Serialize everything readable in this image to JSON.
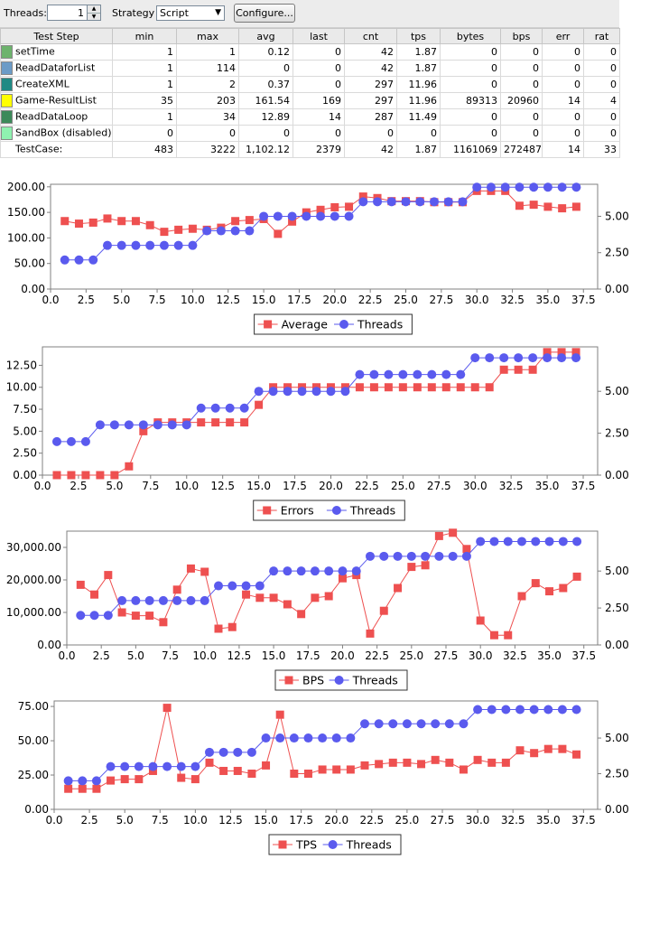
{
  "toolbar": {
    "threads_label": "Threads:",
    "threads_value": "1",
    "strategy_label": "Strategy",
    "strategy_value": "Script",
    "configure_label": "Configure..."
  },
  "stats_table": {
    "columns": [
      "Test Step",
      "min",
      "max",
      "avg",
      "last",
      "cnt",
      "tps",
      "bytes",
      "bps",
      "err",
      "rat"
    ],
    "rows": [
      {
        "color": "#6db36d",
        "cells": [
          "setTime",
          "1",
          "1",
          "0.12",
          "0",
          "42",
          "1.87",
          "0",
          "0",
          "0",
          "0"
        ]
      },
      {
        "color": "#6b9bc7",
        "cells": [
          "ReadDataforList",
          "1",
          "114",
          "0",
          "0",
          "42",
          "1.87",
          "0",
          "0",
          "0",
          "0"
        ]
      },
      {
        "color": "#1f8a84",
        "cells": [
          "CreateXML",
          "1",
          "2",
          "0.37",
          "0",
          "297",
          "11.96",
          "0",
          "0",
          "0",
          "0"
        ]
      },
      {
        "color": "#ffff00",
        "cells": [
          "Game-ResultList",
          "35",
          "203",
          "161.54",
          "169",
          "297",
          "11.96",
          "89313",
          "20960",
          "14",
          "4"
        ]
      },
      {
        "color": "#3c8a5a",
        "cells": [
          "ReadDataLoop",
          "1",
          "34",
          "12.89",
          "14",
          "287",
          "11.49",
          "0",
          "0",
          "0",
          "0"
        ]
      },
      {
        "color": "#8ff2b0",
        "cells": [
          "SandBox (disabled)",
          "0",
          "0",
          "0",
          "0",
          "0",
          "0",
          "0",
          "0",
          "0",
          "0"
        ]
      },
      {
        "color": "",
        "cells": [
          "TestCase:",
          "483",
          "3222",
          "1,102.12",
          "2379",
          "42",
          "1.87",
          "1161069",
          "272487",
          "14",
          "33"
        ]
      }
    ]
  },
  "colors": {
    "primary_series": "#ee5050",
    "threads_series": "#5a5aee",
    "axis": "#808080"
  },
  "chart_data": [
    {
      "type": "line",
      "x": [
        1,
        2,
        3,
        4,
        5,
        6,
        7,
        8,
        9,
        10,
        11,
        12,
        13,
        14,
        15,
        16,
        17,
        18,
        19,
        20,
        21,
        22,
        23,
        24,
        25,
        26,
        27,
        28,
        29,
        30,
        31,
        32,
        33,
        34,
        35,
        36,
        37
      ],
      "xlim": [
        0,
        38.5
      ],
      "xticks": [
        "0.0",
        "2.5",
        "5.0",
        "7.5",
        "10.0",
        "12.5",
        "15.0",
        "17.5",
        "20.0",
        "22.5",
        "25.0",
        "27.5",
        "30.0",
        "32.5",
        "35.0",
        "37.5"
      ],
      "ylim": [
        0,
        205
      ],
      "yticks": [
        "0.00",
        "50.00",
        "100.00",
        "150.00",
        "200.00"
      ],
      "y2lim": [
        0,
        7.2
      ],
      "y2ticks": [
        "0.00",
        "2.50",
        "5.00"
      ],
      "series": [
        {
          "name": "Average",
          "marker": "square",
          "axis": "left",
          "values": [
            133,
            128,
            130,
            138,
            133,
            133,
            125,
            112,
            116,
            118,
            116,
            120,
            133,
            135,
            137,
            108,
            132,
            150,
            155,
            160,
            161,
            181,
            178,
            172,
            172,
            172,
            170,
            170,
            170,
            192,
            192,
            192,
            163,
            165,
            161,
            158,
            161
          ]
        },
        {
          "name": "Threads",
          "marker": "circle",
          "axis": "right",
          "values": [
            2,
            2,
            2,
            3,
            3,
            3,
            3,
            3,
            3,
            3,
            4,
            4,
            4,
            4,
            5,
            5,
            5,
            5,
            5,
            5,
            5,
            6,
            6,
            6,
            6,
            6,
            6,
            6,
            6,
            7,
            7,
            7,
            7,
            7,
            7,
            7,
            7
          ]
        }
      ]
    },
    {
      "type": "line",
      "x": [
        1,
        2,
        3,
        4,
        5,
        6,
        7,
        8,
        9,
        10,
        11,
        12,
        13,
        14,
        15,
        16,
        17,
        18,
        19,
        20,
        21,
        22,
        23,
        24,
        25,
        26,
        27,
        28,
        29,
        30,
        31,
        32,
        33,
        34,
        35,
        36,
        37
      ],
      "xlim": [
        0,
        38.5
      ],
      "xticks": [
        "0.0",
        "2.5",
        "5.0",
        "7.5",
        "10.0",
        "12.5",
        "15.0",
        "17.5",
        "20.0",
        "22.5",
        "25.0",
        "27.5",
        "30.0",
        "32.5",
        "35.0",
        "37.5"
      ],
      "ylim": [
        0,
        14.6
      ],
      "yticks": [
        "0.00",
        "2.50",
        "5.00",
        "7.50",
        "10.00",
        "12.50"
      ],
      "y2lim": [
        0,
        7.65
      ],
      "y2ticks": [
        "0.00",
        "2.50",
        "5.00"
      ],
      "series": [
        {
          "name": "Errors",
          "marker": "square",
          "axis": "left",
          "values": [
            0,
            0,
            0,
            0,
            0,
            1,
            5,
            6,
            6,
            6,
            6,
            6,
            6,
            6,
            8,
            10,
            10,
            10,
            10,
            10,
            10,
            10,
            10,
            10,
            10,
            10,
            10,
            10,
            10,
            10,
            10,
            12,
            12,
            12,
            14,
            14,
            14
          ]
        },
        {
          "name": "Threads",
          "marker": "circle",
          "axis": "right",
          "values": [
            2,
            2,
            2,
            3,
            3,
            3,
            3,
            3,
            3,
            3,
            4,
            4,
            4,
            4,
            5,
            5,
            5,
            5,
            5,
            5,
            5,
            6,
            6,
            6,
            6,
            6,
            6,
            6,
            6,
            7,
            7,
            7,
            7,
            7,
            7,
            7,
            7
          ]
        }
      ]
    },
    {
      "type": "line",
      "x": [
        1,
        2,
        3,
        4,
        5,
        6,
        7,
        8,
        9,
        10,
        11,
        12,
        13,
        14,
        15,
        16,
        17,
        18,
        19,
        20,
        21,
        22,
        23,
        24,
        25,
        26,
        27,
        28,
        29,
        30,
        31,
        32,
        33,
        34,
        35,
        36,
        37
      ],
      "xlim": [
        0,
        38.5
      ],
      "xticks": [
        "0.0",
        "2.5",
        "5.0",
        "7.5",
        "10.0",
        "12.5",
        "15.0",
        "17.5",
        "20.0",
        "22.5",
        "25.0",
        "27.5",
        "30.0",
        "32.5",
        "35.0",
        "37.5"
      ],
      "ylim": [
        0,
        35000
      ],
      "yticks": [
        "0.00",
        "10,000.00",
        "20,000.00",
        "30,000.00"
      ],
      "y2lim": [
        0,
        7.7
      ],
      "y2ticks": [
        "0.00",
        "2.50",
        "5.00"
      ],
      "series": [
        {
          "name": "BPS",
          "marker": "square",
          "axis": "left",
          "values": [
            18500,
            15500,
            21500,
            10000,
            9000,
            9000,
            7000,
            17000,
            23500,
            22500,
            5000,
            5500,
            15500,
            14500,
            14500,
            12500,
            9500,
            14500,
            15000,
            20500,
            21500,
            3500,
            10500,
            17500,
            24000,
            24500,
            33500,
            34500,
            29500,
            7500,
            3000,
            3000,
            15000,
            19000,
            16500,
            17500,
            21000
          ]
        },
        {
          "name": "Threads",
          "marker": "circle",
          "axis": "right",
          "values": [
            2,
            2,
            2,
            3,
            3,
            3,
            3,
            3,
            3,
            3,
            4,
            4,
            4,
            4,
            5,
            5,
            5,
            5,
            5,
            5,
            5,
            6,
            6,
            6,
            6,
            6,
            6,
            6,
            6,
            7,
            7,
            7,
            7,
            7,
            7,
            7,
            7
          ]
        }
      ]
    },
    {
      "type": "line",
      "x": [
        1,
        2,
        3,
        4,
        5,
        6,
        7,
        8,
        9,
        10,
        11,
        12,
        13,
        14,
        15,
        16,
        17,
        18,
        19,
        20,
        21,
        22,
        23,
        24,
        25,
        26,
        27,
        28,
        29,
        30,
        31,
        32,
        33,
        34,
        35,
        36,
        37
      ],
      "xlim": [
        0,
        38.5
      ],
      "xticks": [
        "0.0",
        "2.5",
        "5.0",
        "7.5",
        "10.0",
        "12.5",
        "15.0",
        "17.5",
        "20.0",
        "22.5",
        "25.0",
        "27.5",
        "30.0",
        "32.5",
        "35.0",
        "37.5"
      ],
      "ylim": [
        0,
        79
      ],
      "yticks": [
        "0.00",
        "25.00",
        "50.00",
        "75.00"
      ],
      "y2lim": [
        0,
        7.6
      ],
      "y2ticks": [
        "0.00",
        "2.50",
        "5.00"
      ],
      "series": [
        {
          "name": "TPS",
          "marker": "square",
          "axis": "left",
          "values": [
            15,
            15,
            15,
            21,
            22,
            22,
            28,
            74,
            23,
            22,
            34,
            28,
            28,
            26,
            32,
            69,
            26,
            26,
            29,
            29,
            29,
            32,
            33,
            34,
            34,
            33,
            36,
            34,
            29,
            36,
            34,
            34,
            43,
            41,
            44,
            44,
            40
          ]
        },
        {
          "name": "Threads",
          "marker": "circle",
          "axis": "right",
          "values": [
            2,
            2,
            2,
            3,
            3,
            3,
            3,
            3,
            3,
            3,
            4,
            4,
            4,
            4,
            5,
            5,
            5,
            5,
            5,
            5,
            5,
            6,
            6,
            6,
            6,
            6,
            6,
            6,
            6,
            7,
            7,
            7,
            7,
            7,
            7,
            7,
            7
          ]
        }
      ]
    }
  ]
}
